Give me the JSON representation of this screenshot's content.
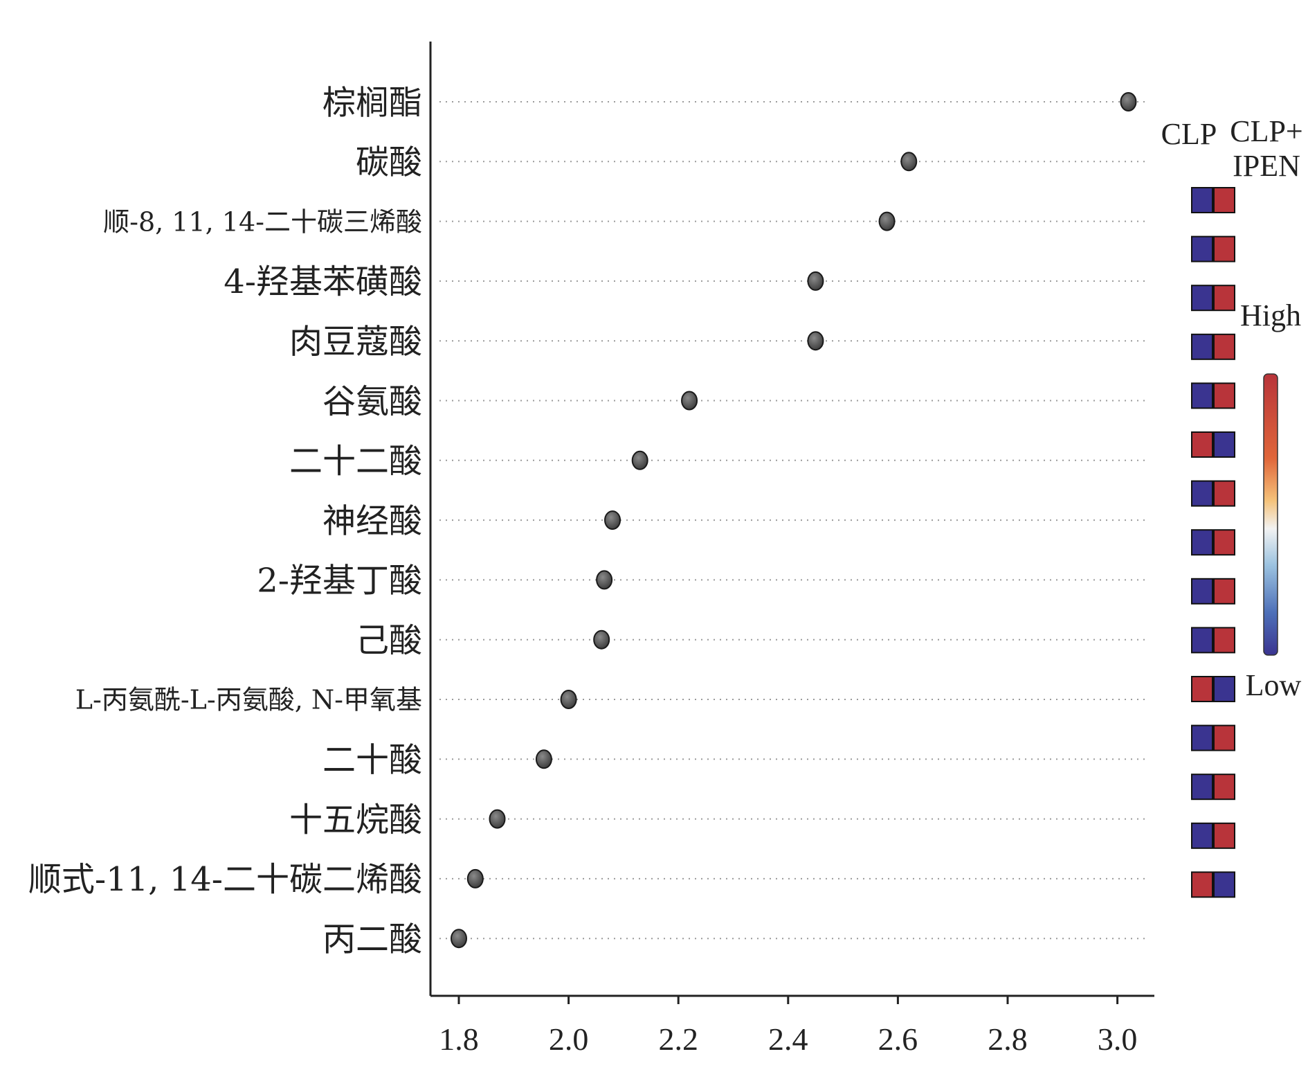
{
  "chart_data": {
    "type": "scatter",
    "orientation": "horizontal-dot-plot",
    "xlim": [
      1.75,
      3.07
    ],
    "x_ticks": [
      "1.8",
      "2.0",
      "2.2",
      "2.4",
      "2.6",
      "2.8",
      "3.0"
    ],
    "categories": [
      "棕榈酯",
      "碳酸",
      "顺-8, 11, 14-二十碳三烯酸",
      "4-羟基苯磺酸",
      "肉豆蔻酸",
      "谷氨酸",
      "二十二酸",
      "神经酸",
      "2-羟基丁酸",
      "己酸",
      "L-丙氨酰-L-丙氨酸, N-甲氧基",
      "二十酸",
      "十五烷酸",
      "顺式-11, 14-二十碳二烯酸",
      "丙二酸"
    ],
    "values": [
      3.02,
      2.62,
      2.58,
      2.45,
      2.45,
      2.22,
      2.13,
      2.08,
      2.065,
      2.06,
      2.0,
      1.955,
      1.87,
      1.83,
      1.8
    ],
    "heatmap": {
      "columns": [
        "CLP",
        "CLP+\nIPEN"
      ],
      "column_labels": {
        "clp": "CLP",
        "clp_ipen_line1": "CLP+",
        "clp_ipen_line2": "IPEN"
      },
      "cells": [
        [
          "low",
          "high"
        ],
        [
          "low",
          "high"
        ],
        [
          "low",
          "high"
        ],
        [
          "low",
          "high"
        ],
        [
          "low",
          "high"
        ],
        [
          "high",
          "low"
        ],
        [
          "low",
          "high"
        ],
        [
          "low",
          "high"
        ],
        [
          "low",
          "high"
        ],
        [
          "low",
          "high"
        ],
        [
          "high",
          "low"
        ],
        [
          "low",
          "high"
        ],
        [
          "low",
          "high"
        ],
        [
          "low",
          "high"
        ],
        [
          "high",
          "low"
        ]
      ]
    },
    "colorbar": {
      "high_label": "High",
      "low_label": "Low"
    },
    "colors": {
      "low": "#3a3490",
      "high": "#b8343a",
      "point": "#555555",
      "axis": "#222222",
      "grid_dot": "#9a9a9a"
    }
  }
}
